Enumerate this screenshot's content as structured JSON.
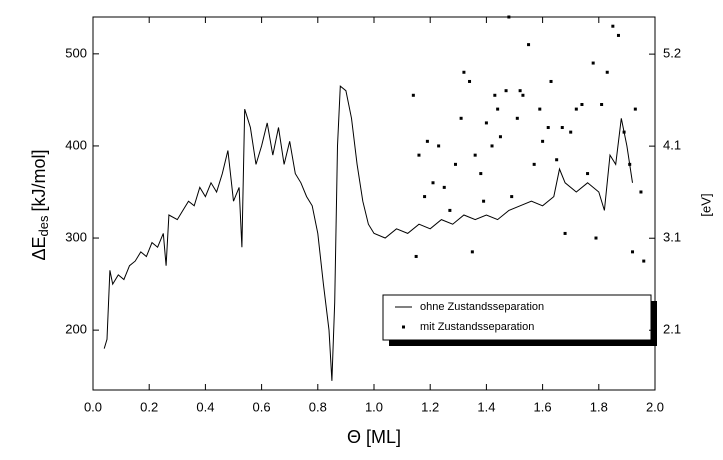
{
  "chart_data": {
    "type": "line",
    "xlabel": "Θ [ML]",
    "ylabel": {
      "main": "ΔE",
      "sub": "des",
      "unit": "[kJ/mol]"
    },
    "y2label": "[eV]",
    "xlim": [
      0,
      2
    ],
    "ylim": [
      135,
      540
    ],
    "y2lim": [
      1.4,
      5.6
    ],
    "xticks": [
      {
        "value": 0,
        "label": "0.0"
      },
      0.2,
      0.4,
      0.6,
      0.8,
      {
        "value": 1,
        "label": "1.0"
      },
      1.2,
      1.4,
      1.6,
      1.8,
      {
        "value": 2,
        "label": "2.0"
      }
    ],
    "yticks": [
      200,
      300,
      400,
      500
    ],
    "y2ticks": [
      {
        "value": 2.073,
        "label": "2.1"
      },
      {
        "value": 3.109,
        "label": "3.1"
      },
      {
        "value": 4.146,
        "label": "4.1"
      },
      {
        "value": 5.182,
        "label": "5.2"
      }
    ],
    "series": [
      {
        "name": "ohne Zustandsseparation",
        "type": "line",
        "color": "#000000",
        "x": [
          0.04,
          0.05,
          0.06,
          0.07,
          0.09,
          0.11,
          0.13,
          0.15,
          0.17,
          0.19,
          0.21,
          0.23,
          0.25,
          0.26,
          0.27,
          0.3,
          0.32,
          0.34,
          0.36,
          0.38,
          0.4,
          0.42,
          0.44,
          0.46,
          0.48,
          0.5,
          0.52,
          0.53,
          0.54,
          0.56,
          0.58,
          0.6,
          0.62,
          0.64,
          0.66,
          0.68,
          0.7,
          0.72,
          0.74,
          0.76,
          0.78,
          0.8,
          0.82,
          0.84,
          0.85,
          0.86,
          0.87,
          0.88,
          0.9,
          0.92,
          0.94,
          0.96,
          0.98,
          1.0,
          1.04,
          1.08,
          1.12,
          1.16,
          1.2,
          1.24,
          1.28,
          1.32,
          1.36,
          1.4,
          1.44,
          1.48,
          1.52,
          1.56,
          1.6,
          1.64,
          1.66,
          1.68,
          1.72,
          1.76,
          1.8,
          1.82,
          1.84,
          1.86,
          1.88,
          1.9,
          1.92
        ],
        "values": [
          180,
          190,
          265,
          250,
          260,
          255,
          270,
          275,
          285,
          280,
          295,
          290,
          305,
          270,
          325,
          320,
          330,
          340,
          335,
          355,
          345,
          360,
          350,
          370,
          395,
          340,
          355,
          290,
          440,
          420,
          380,
          400,
          425,
          390,
          420,
          380,
          405,
          370,
          360,
          345,
          335,
          305,
          250,
          200,
          145,
          230,
          400,
          465,
          460,
          430,
          380,
          340,
          315,
          305,
          300,
          310,
          305,
          315,
          310,
          320,
          315,
          325,
          320,
          325,
          320,
          330,
          335,
          340,
          335,
          345,
          375,
          360,
          350,
          360,
          350,
          330,
          390,
          380,
          430,
          400,
          360
        ]
      },
      {
        "name": "mit Zustandsseparation",
        "type": "scatter",
        "color": "#000000",
        "x": [
          1.14,
          1.15,
          1.16,
          1.18,
          1.19,
          1.21,
          1.23,
          1.25,
          1.27,
          1.29,
          1.31,
          1.32,
          1.34,
          1.35,
          1.36,
          1.38,
          1.39,
          1.4,
          1.42,
          1.43,
          1.44,
          1.45,
          1.47,
          1.48,
          1.49,
          1.51,
          1.52,
          1.53,
          1.55,
          1.57,
          1.59,
          1.6,
          1.62,
          1.63,
          1.65,
          1.67,
          1.68,
          1.7,
          1.72,
          1.74,
          1.76,
          1.78,
          1.79,
          1.81,
          1.83,
          1.85,
          1.87,
          1.89,
          1.91,
          1.92,
          1.93,
          1.95,
          1.96
        ],
        "values": [
          455,
          280,
          390,
          345,
          405,
          360,
          400,
          355,
          330,
          380,
          430,
          480,
          470,
          285,
          390,
          370,
          340,
          425,
          400,
          455,
          440,
          410,
          460,
          540,
          345,
          430,
          460,
          455,
          510,
          380,
          440,
          405,
          420,
          470,
          385,
          420,
          305,
          415,
          440,
          445,
          370,
          490,
          300,
          445,
          480,
          530,
          520,
          415,
          380,
          285,
          440,
          350,
          275
        ]
      }
    ]
  }
}
